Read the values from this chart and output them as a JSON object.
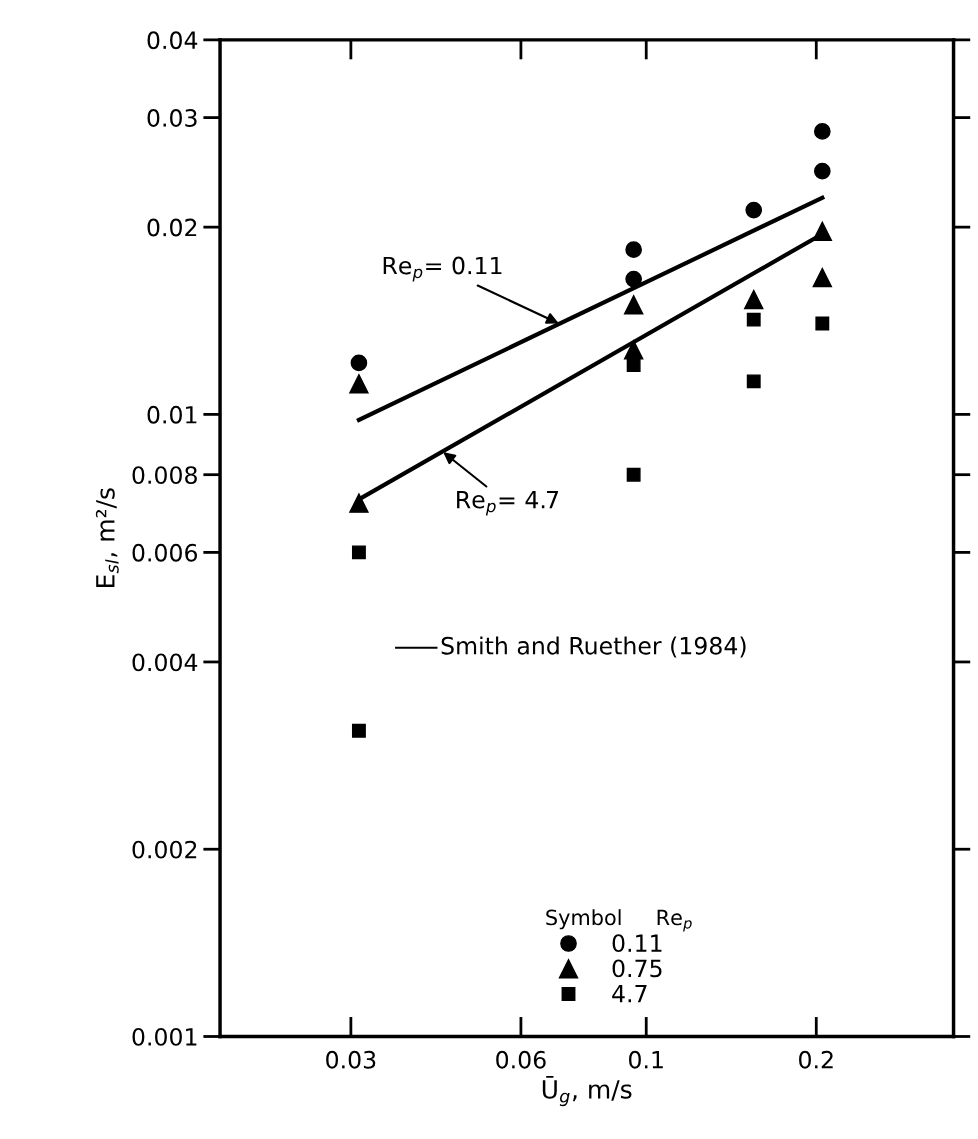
{
  "chart_data": {
    "type": "scatter",
    "xlabel": "Ū$_{g}$, m/s",
    "ylabel": "E$_{sl}$, m²/s",
    "legend_title": "Symbol     Re$_{p}$",
    "log": "xy",
    "xlim": [
      0.0176,
      0.35
    ],
    "ylim": [
      0.001,
      0.04
    ],
    "xticks": [
      0.03,
      0.06,
      0.1,
      0.2
    ],
    "yticks": [
      0.001,
      0.002,
      0.004,
      0.006,
      0.008,
      0.01,
      0.02,
      0.03,
      0.04
    ],
    "grid": false,
    "legend": "bottom right",
    "series": [
      {
        "name": "0.11",
        "marker": "circle",
        "color": "#000000",
        "x": [
          0.031,
          0.095,
          0.095,
          0.155,
          0.205,
          0.205
        ],
        "values": [
          0.0121,
          0.0184,
          0.0165,
          0.0213,
          0.0285,
          0.0246
        ]
      },
      {
        "name": "0.75",
        "marker": "triangle",
        "color": "#000000",
        "x": [
          0.031,
          0.031,
          0.095,
          0.095,
          0.155,
          0.205,
          0.205
        ],
        "values": [
          0.0112,
          0.0072,
          0.015,
          0.0127,
          0.0153,
          0.0197,
          0.0166
        ]
      },
      {
        "name": "4.7",
        "marker": "square",
        "color": "#000000",
        "x": [
          0.031,
          0.031,
          0.095,
          0.095,
          0.155,
          0.155,
          0.205
        ],
        "values": [
          0.006,
          0.0031,
          0.012,
          0.008,
          0.0142,
          0.0113,
          0.014
        ]
      },
      {
        "type": "line",
        "marker": "none",
        "color": "#000000",
        "x": [
          0.031,
          0.205
        ],
        "values": [
          0.0098,
          0.0223
        ]
      },
      {
        "type": "line",
        "marker": "none",
        "color": "#000000",
        "x": [
          0.031,
          0.205
        ],
        "values": [
          0.0073,
          0.0195
        ]
      }
    ],
    "annotations": [
      {
        "text": "Re$_{p}$= 0.11",
        "x": 0.07,
        "y": 0.014
      },
      {
        "text": "Re$_{p}$= 4.7",
        "x": 0.0437,
        "y": 0.0087
      },
      "Smith and Ruether (1984)"
    ]
  }
}
